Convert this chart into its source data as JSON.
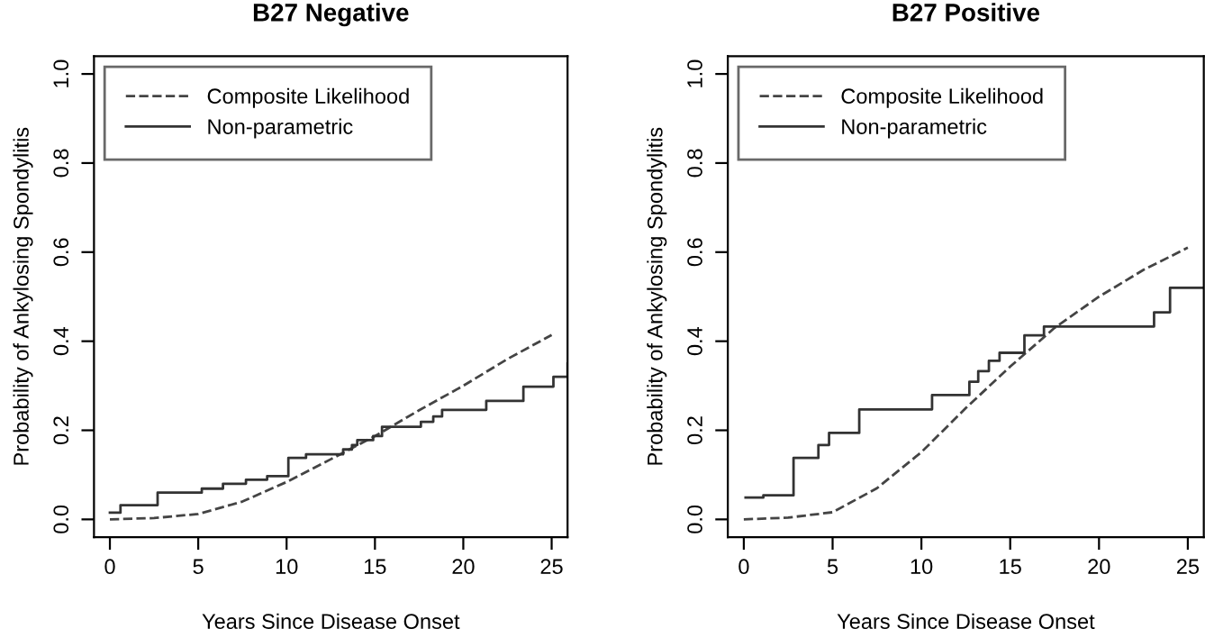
{
  "chart_data": [
    {
      "type": "line",
      "title": "B27 Negative",
      "xlabel": "Years Since Disease Onset",
      "ylabel": "Probability of Ankylosing Spondylitis",
      "xlim": [
        -0.9,
        25.9
      ],
      "xticks": [
        0,
        5,
        10,
        15,
        20,
        25
      ],
      "ylim": [
        -0.04,
        1.04
      ],
      "yticks": [
        {
          "value": 0,
          "label": "0.0"
        },
        {
          "value": 0.2,
          "label": "0.2"
        },
        {
          "value": 0.4,
          "label": "0.4"
        },
        {
          "value": 0.6,
          "label": "0.6"
        },
        {
          "value": 0.8,
          "label": "0.8"
        },
        {
          "value": 1,
          "label": "1.0"
        }
      ],
      "grid": false,
      "legend": "top left",
      "series": [
        {
          "name": "Composite Likelihood",
          "line_style": "dashed",
          "color": "#444444",
          "x": [
            0,
            2.5,
            5,
            7.5,
            10,
            12.5,
            15,
            17.5,
            20,
            22.5,
            25
          ],
          "values": [
            0,
            0.003,
            0.012,
            0.04,
            0.084,
            0.135,
            0.187,
            0.245,
            0.3,
            0.36,
            0.414
          ]
        },
        {
          "name": "Non-parametric",
          "type": "step",
          "line_style": "solid",
          "color": "#333333",
          "x": [
            0,
            0.6,
            2.7,
            5.2,
            6.4,
            7.7,
            8.9,
            10.1,
            11.1,
            13.2,
            13.7,
            14.0,
            14.9,
            15.4,
            17.6,
            18.3,
            18.8,
            21.3,
            23.4,
            25.1,
            25.9
          ],
          "values": [
            0.015,
            0.032,
            0.06,
            0.069,
            0.08,
            0.089,
            0.097,
            0.138,
            0.146,
            0.157,
            0.167,
            0.178,
            0.187,
            0.208,
            0.219,
            0.231,
            0.246,
            0.266,
            0.298,
            0.32,
            0.35
          ]
        }
      ]
    },
    {
      "type": "line",
      "title": "B27 Positive",
      "xlabel": "Years Since Disease Onset",
      "ylabel": "Probability of Ankylosing Spondylitis",
      "xlim": [
        -0.9,
        25.9
      ],
      "xticks": [
        0,
        5,
        10,
        15,
        20,
        25
      ],
      "ylim": [
        -0.04,
        1.04
      ],
      "yticks": [
        {
          "value": 0,
          "label": "0.0"
        },
        {
          "value": 0.2,
          "label": "0.2"
        },
        {
          "value": 0.4,
          "label": "0.4"
        },
        {
          "value": 0.6,
          "label": "0.6"
        },
        {
          "value": 0.8,
          "label": "0.8"
        },
        {
          "value": 1,
          "label": "1.0"
        }
      ],
      "grid": false,
      "legend": "top left",
      "series": [
        {
          "name": "Composite Likelihood",
          "line_style": "dashed",
          "color": "#444444",
          "x": [
            0,
            2.5,
            5,
            7.5,
            10,
            12.5,
            15,
            17.5,
            20,
            22.5,
            25
          ],
          "values": [
            0,
            0.004,
            0.016,
            0.07,
            0.151,
            0.25,
            0.343,
            0.43,
            0.5,
            0.56,
            0.61
          ]
        },
        {
          "name": "Non-parametric",
          "type": "step",
          "line_style": "solid",
          "color": "#333333",
          "x": [
            0.1,
            1.1,
            2.8,
            4.2,
            4.8,
            6.5,
            10.6,
            12.7,
            13.2,
            13.8,
            14.4,
            15.8,
            16.9,
            23.1,
            24.0,
            25.9
          ],
          "values": [
            0.049,
            0.054,
            0.138,
            0.167,
            0.194,
            0.247,
            0.279,
            0.309,
            0.333,
            0.356,
            0.374,
            0.413,
            0.433,
            0.465,
            0.52,
            0.52
          ]
        }
      ]
    }
  ]
}
